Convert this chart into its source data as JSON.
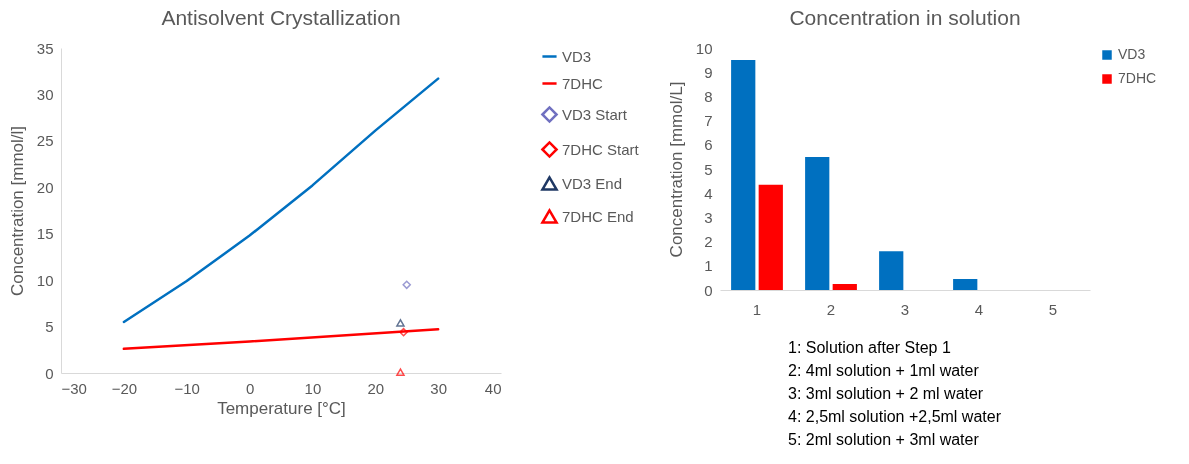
{
  "chart_data": [
    {
      "type": "line",
      "title": "Antisolvent Crystallization",
      "xlabel": "Temperature [°C]",
      "ylabel": "Concentration [mmol/l]",
      "xlim": [
        -30,
        40
      ],
      "xticks": [
        -30,
        -20,
        -10,
        0,
        10,
        20,
        30,
        40
      ],
      "ylim": [
        0,
        35
      ],
      "yticks": [
        0,
        5,
        10,
        15,
        20,
        25,
        30,
        35
      ],
      "legend": "right",
      "grid": false,
      "series": [
        {
          "name": "VD3",
          "color": "#0070c0",
          "marker": "none",
          "x": [
            -20,
            -10,
            0,
            10,
            20,
            30
          ],
          "values": [
            5.5,
            9.9,
            14.8,
            20.2,
            26.1,
            31.7
          ]
        },
        {
          "name": "7DHC",
          "color": "#ff0000",
          "marker": "none",
          "x": [
            -20,
            0,
            30
          ],
          "values": [
            2.6,
            3.4,
            4.7
          ]
        },
        {
          "name": "VD3 Start",
          "type": "scatter",
          "color": "#7070c0",
          "marker": "diamond",
          "x": [
            25
          ],
          "values": [
            9.5
          ]
        },
        {
          "name": "7DHC Start",
          "type": "scatter",
          "color": "#ff0000",
          "marker": "diamond",
          "x": [
            24.5
          ],
          "values": [
            4.4
          ]
        },
        {
          "name": "VD3 End",
          "type": "scatter",
          "color": "#1f3864",
          "marker": "triangle",
          "x": [
            24
          ],
          "values": [
            5.4
          ]
        },
        {
          "name": "7DHC End",
          "type": "scatter",
          "color": "#ff0000",
          "marker": "triangle",
          "x": [
            24
          ],
          "values": [
            0.1
          ]
        }
      ]
    },
    {
      "type": "bar",
      "title": "Concentration in solution",
      "ylabel": "Concentration [mmol/L]",
      "categories": [
        "1",
        "2",
        "3",
        "4",
        "5"
      ],
      "ylim": [
        0,
        10
      ],
      "yticks": [
        0,
        1,
        2,
        3,
        4,
        5,
        6,
        7,
        8,
        9,
        10
      ],
      "legend": "right",
      "grid": false,
      "series": [
        {
          "name": "VD3",
          "color": "#0070c0",
          "values": [
            9.5,
            5.5,
            1.6,
            0.45,
            0
          ]
        },
        {
          "name": "7DHC",
          "color": "#ff0000",
          "values": [
            4.35,
            0.25,
            0,
            0,
            0
          ]
        }
      ],
      "annotations": [
        "1: Solution after Step 1",
        "2: 4ml solution + 1ml water",
        "3: 3ml solution + 2 ml water",
        "4: 2,5ml solution +2,5ml water",
        "5: 2ml solution + 3ml water"
      ]
    }
  ]
}
